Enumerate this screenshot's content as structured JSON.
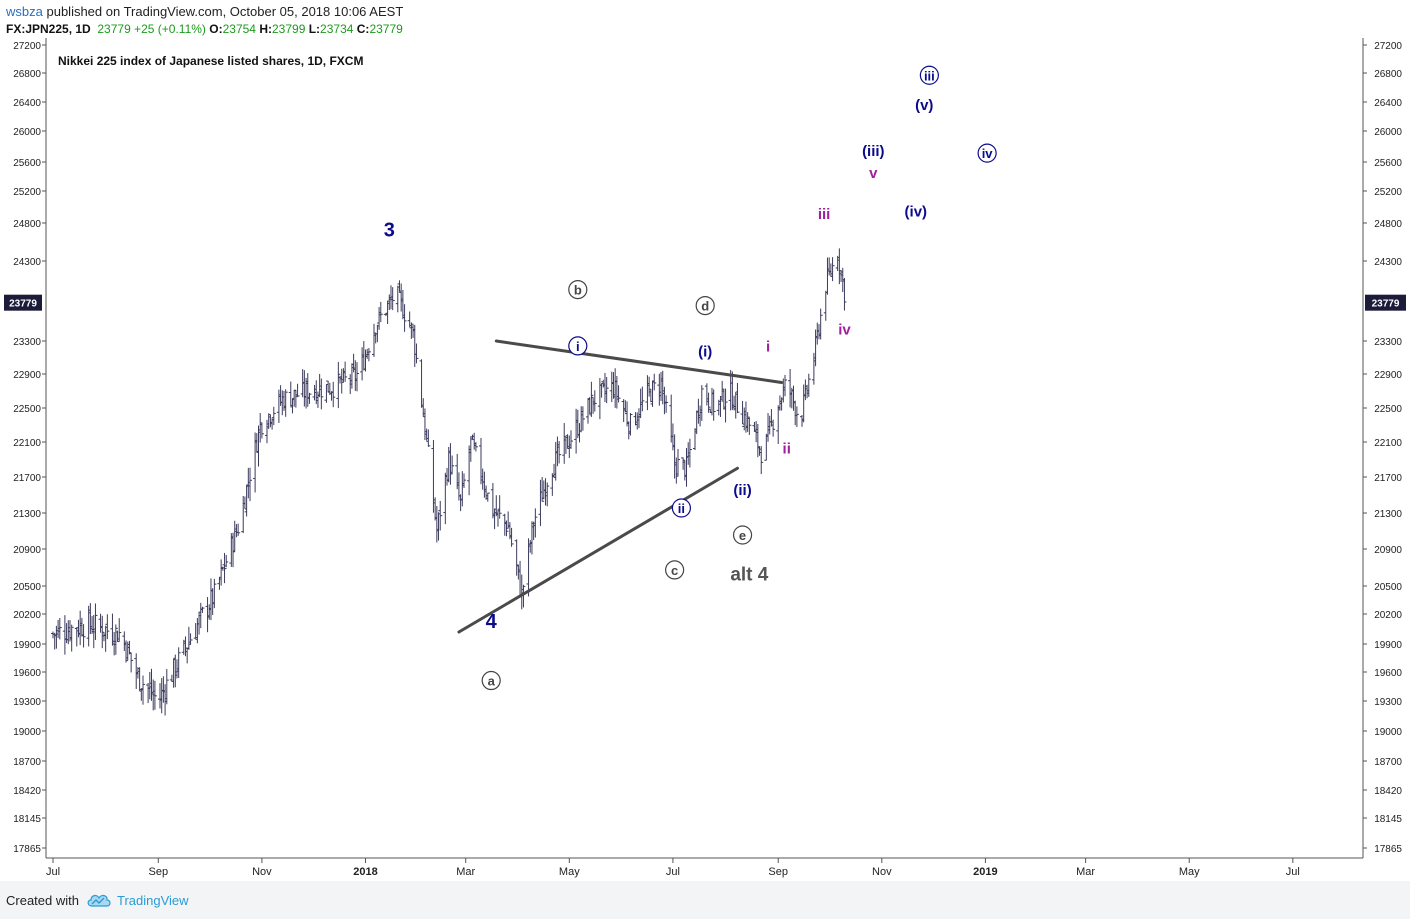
{
  "header": {
    "user": "wsbza",
    "published": "published on TradingView.com, October 05, 2018 10:06 AEST",
    "symbol": "FX:JPN225, 1D",
    "last": "23779",
    "change": "+25 (+0.11%)",
    "o_label": "O:",
    "o_value": "23754",
    "h_label": "H:",
    "h_value": "23799",
    "l_label": "L:",
    "l_value": "23734",
    "c_label": "C:",
    "c_value": "23779"
  },
  "footer": {
    "created_with": "Created with",
    "brand": "TradingView"
  },
  "colors": {
    "bars": "#3a3a5c",
    "trend": "#4a4a4a",
    "navy": "#0b0b8c",
    "magenta": "#a020a0",
    "price_tag": "#1c1c3a"
  },
  "chart_data": {
    "type": "bar",
    "title": "Nikkei 225 index of Japanese listed shares, 1D, FXCM",
    "ylim": [
      17700,
      27250
    ],
    "yticks": [
      17865,
      18145,
      18420,
      18700,
      19000,
      19300,
      19600,
      19900,
      20200,
      20500,
      20900,
      21300,
      21700,
      22100,
      22500,
      22900,
      23300,
      24300,
      24800,
      25200,
      25600,
      26000,
      26400,
      26800,
      27200
    ],
    "last_price": 23779,
    "x_ticks": [
      {
        "label": "Jul",
        "day": 0
      },
      {
        "label": "Sep",
        "day": 62
      },
      {
        "label": "Nov",
        "day": 123
      },
      {
        "label": "2018",
        "day": 184
      },
      {
        "label": "Mar",
        "day": 243
      },
      {
        "label": "May",
        "day": 304
      },
      {
        "label": "Jul",
        "day": 365
      },
      {
        "label": "Sep",
        "day": 427
      },
      {
        "label": "Nov",
        "day": 488
      },
      {
        "label": "2019",
        "day": 549
      },
      {
        "label": "Mar",
        "day": 608
      },
      {
        "label": "May",
        "day": 669
      },
      {
        "label": "Jul",
        "day": 730
      }
    ],
    "price_path": [
      [
        0,
        20000
      ],
      [
        20,
        20100
      ],
      [
        40,
        20000
      ],
      [
        50,
        19550
      ],
      [
        62,
        19300
      ],
      [
        72,
        19650
      ],
      [
        82,
        20000
      ],
      [
        95,
        20400
      ],
      [
        110,
        21200
      ],
      [
        122,
        22300
      ],
      [
        135,
        22600
      ],
      [
        150,
        22700
      ],
      [
        165,
        22750
      ],
      [
        180,
        22900
      ],
      [
        190,
        23500
      ],
      [
        202,
        23900
      ],
      [
        212,
        23400
      ],
      [
        220,
        22100
      ],
      [
        226,
        21100
      ],
      [
        233,
        21900
      ],
      [
        240,
        21400
      ],
      [
        246,
        22100
      ],
      [
        253,
        21700
      ],
      [
        258,
        21350
      ],
      [
        268,
        21150
      ],
      [
        276,
        20400
      ],
      [
        283,
        21200
      ],
      [
        293,
        21800
      ],
      [
        305,
        22150
      ],
      [
        318,
        22600
      ],
      [
        330,
        22750
      ],
      [
        340,
        22300
      ],
      [
        350,
        22650
      ],
      [
        358,
        22800
      ],
      [
        366,
        21850
      ],
      [
        373,
        21800
      ],
      [
        382,
        22700
      ],
      [
        390,
        22500
      ],
      [
        398,
        22700
      ],
      [
        410,
        22300
      ],
      [
        418,
        21950
      ],
      [
        426,
        22500
      ],
      [
        432,
        22800
      ],
      [
        440,
        22350
      ],
      [
        448,
        23100
      ],
      [
        455,
        24000
      ],
      [
        462,
        24400
      ],
      [
        467,
        23779
      ]
    ],
    "trendlines": [
      {
        "name": "triangle-upper",
        "from": [
          261,
          23300
        ],
        "to": [
          429,
          22800
        ]
      },
      {
        "name": "triangle-lower",
        "from": [
          239,
          20020
        ],
        "to": [
          403,
          21800
        ]
      }
    ],
    "labels": [
      {
        "text": "Nikkei 225 index of Japanese listed shares, 1D, FXCM",
        "role": "title"
      },
      {
        "text": "3",
        "day": 198,
        "price": 24620,
        "color": "navy",
        "size": 20
      },
      {
        "text": "4",
        "day": 258,
        "price": 20060,
        "color": "navy",
        "size": 20
      },
      {
        "text": "a",
        "day": 258,
        "price": 19460,
        "color": "gray",
        "circle": true
      },
      {
        "text": "b",
        "day": 309,
        "price": 23880,
        "color": "gray",
        "circle": true
      },
      {
        "text": "c",
        "day": 366,
        "price": 20620,
        "color": "gray",
        "circle": true
      },
      {
        "text": "d",
        "day": 384,
        "price": 23680,
        "color": "gray",
        "circle": true
      },
      {
        "text": "e",
        "day": 406,
        "price": 21000,
        "color": "gray",
        "circle": true
      },
      {
        "text": "i",
        "day": 309,
        "price": 23180,
        "color": "navy",
        "circle": true
      },
      {
        "text": "ii",
        "day": 370,
        "price": 21300,
        "color": "navy",
        "circle": true
      },
      {
        "text": "(i)",
        "day": 384,
        "price": 23110,
        "color": "navy"
      },
      {
        "text": "(ii)",
        "day": 406,
        "price": 21500,
        "color": "navy"
      },
      {
        "text": "alt 4",
        "day": 410,
        "price": 20560,
        "color": "darkgray",
        "size": 19
      },
      {
        "text": "i",
        "day": 421,
        "price": 23170,
        "color": "magenta"
      },
      {
        "text": "ii",
        "day": 432,
        "price": 21970,
        "color": "magenta"
      },
      {
        "text": "iii",
        "day": 454,
        "price": 24850,
        "color": "magenta"
      },
      {
        "text": "iv",
        "day": 466,
        "price": 23380,
        "color": "magenta"
      },
      {
        "text": "v",
        "day": 483,
        "price": 25380,
        "color": "magenta"
      },
      {
        "text": "(iii)",
        "day": 483,
        "price": 25680,
        "color": "navy"
      },
      {
        "text": "(iv)",
        "day": 508,
        "price": 24880,
        "color": "navy"
      },
      {
        "text": "(v)",
        "day": 513,
        "price": 26290,
        "color": "navy"
      },
      {
        "text": "iii",
        "day": 516,
        "price": 26700,
        "color": "navy",
        "circle": true
      },
      {
        "text": "iv",
        "day": 550,
        "price": 25650,
        "color": "navy",
        "circle": true
      }
    ]
  }
}
